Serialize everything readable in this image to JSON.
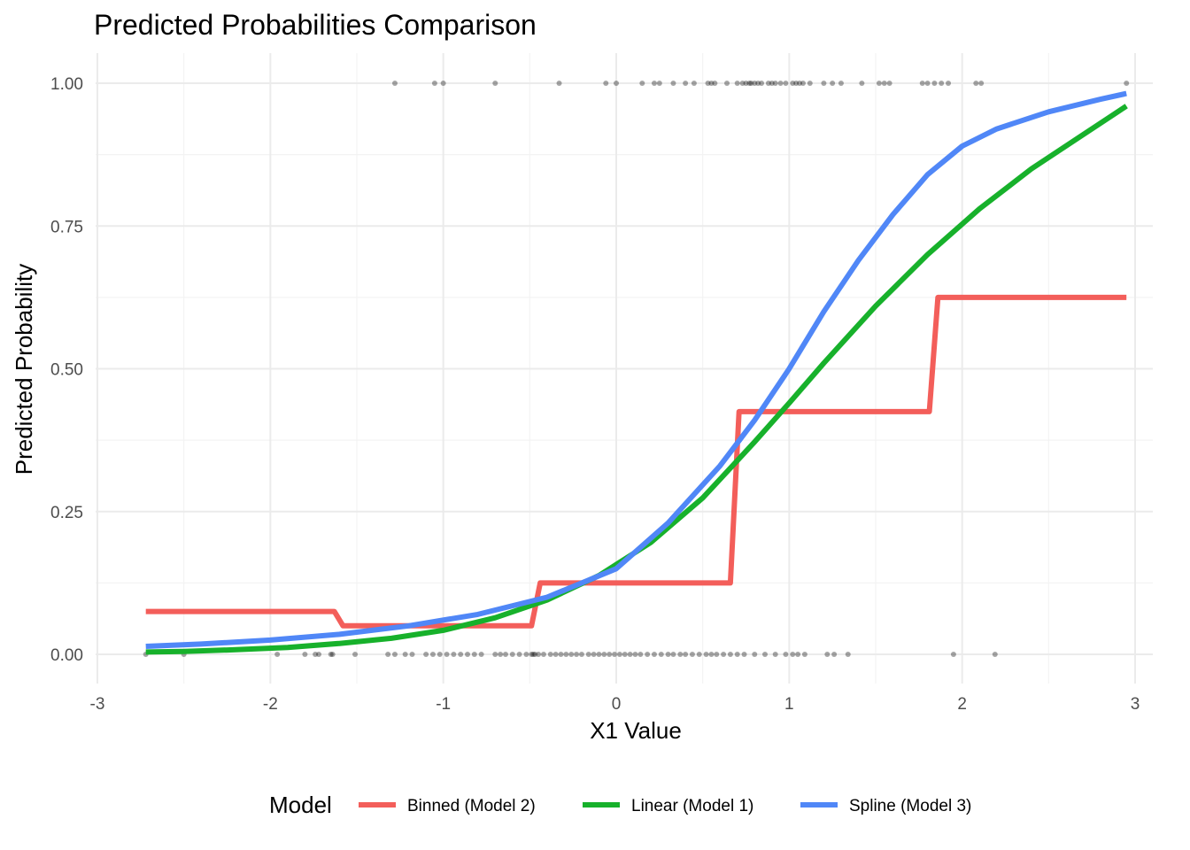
{
  "chart_data": {
    "type": "line",
    "title": "Predicted Probabilities Comparison",
    "xlabel": "X1 Value",
    "ylabel": "Predicted Probability",
    "xlim": [
      -3,
      3
    ],
    "ylim": [
      0,
      1
    ],
    "x_ticks": [
      -3,
      -2,
      -1,
      0,
      1,
      2,
      3
    ],
    "x_tick_labels": [
      "-3",
      "-2",
      "-1",
      "0",
      "1",
      "2",
      "3"
    ],
    "y_ticks": [
      0,
      0.25,
      0.5,
      0.75,
      1
    ],
    "y_tick_labels": [
      "0.00",
      "0.25",
      "0.50",
      "0.75",
      "1.00"
    ],
    "grid": true,
    "legend": {
      "title": "Model",
      "position": "bottom"
    },
    "series": [
      {
        "name": "Binned (Model 2)",
        "color": "#f35e5a",
        "x": [
          -2.72,
          -1.63,
          -1.58,
          -0.49,
          -0.44,
          0.66,
          0.71,
          1.81,
          1.86,
          2.95
        ],
        "y": [
          0.075,
          0.075,
          0.05,
          0.05,
          0.125,
          0.125,
          0.425,
          0.425,
          0.625,
          0.625
        ]
      },
      {
        "name": "Linear (Model 1)",
        "color": "#17b12b",
        "x": [
          -2.72,
          -2.5,
          -2.2,
          -1.9,
          -1.6,
          -1.3,
          -1.0,
          -0.7,
          -0.4,
          -0.1,
          0.2,
          0.5,
          0.8,
          1.0,
          1.2,
          1.5,
          1.8,
          2.1,
          2.4,
          2.7,
          2.95
        ],
        "y": [
          0.004,
          0.005,
          0.008,
          0.012,
          0.019,
          0.028,
          0.042,
          0.064,
          0.095,
          0.138,
          0.196,
          0.274,
          0.372,
          0.44,
          0.51,
          0.61,
          0.7,
          0.78,
          0.85,
          0.91,
          0.96
        ]
      },
      {
        "name": "Spline (Model 3)",
        "color": "#5087f7",
        "x": [
          -2.72,
          -2.4,
          -2.0,
          -1.6,
          -1.2,
          -0.8,
          -0.4,
          0.0,
          0.3,
          0.6,
          0.8,
          1.0,
          1.2,
          1.4,
          1.6,
          1.8,
          2.0,
          2.2,
          2.5,
          2.8,
          2.95
        ],
        "y": [
          0.014,
          0.018,
          0.025,
          0.035,
          0.05,
          0.07,
          0.1,
          0.15,
          0.23,
          0.33,
          0.41,
          0.5,
          0.6,
          0.69,
          0.77,
          0.84,
          0.89,
          0.92,
          0.95,
          0.972,
          0.982
        ]
      }
    ],
    "observations": {
      "type": "scatter",
      "color": "#000000",
      "y1_x": [
        -1.28,
        -1.05,
        -1.0,
        -0.7,
        -0.33,
        -0.06,
        0.0,
        0.15,
        0.22,
        0.25,
        0.33,
        0.4,
        0.45,
        0.53,
        0.55,
        0.57,
        0.64,
        0.7,
        0.73,
        0.75,
        0.77,
        0.78,
        0.8,
        0.82,
        0.84,
        0.88,
        0.9,
        0.92,
        0.95,
        0.98,
        1.02,
        1.04,
        1.06,
        1.08,
        1.12,
        1.2,
        1.25,
        1.3,
        1.42,
        1.52,
        1.55,
        1.58,
        1.77,
        1.8,
        1.84,
        1.88,
        1.92,
        2.08,
        2.11,
        2.95
      ],
      "y0_x": [
        -2.72,
        -2.5,
        -1.96,
        -1.8,
        -1.74,
        -1.72,
        -1.65,
        -1.64,
        -1.51,
        -1.32,
        -1.28,
        -1.22,
        -1.18,
        -1.1,
        -1.06,
        -1.02,
        -0.98,
        -0.94,
        -0.9,
        -0.86,
        -0.82,
        -0.78,
        -0.7,
        -0.67,
        -0.64,
        -0.6,
        -0.56,
        -0.52,
        -0.49,
        -0.48,
        -0.47,
        -0.45,
        -0.42,
        -0.38,
        -0.35,
        -0.32,
        -0.29,
        -0.26,
        -0.23,
        -0.2,
        -0.16,
        -0.13,
        -0.1,
        -0.07,
        -0.04,
        -0.01,
        0.02,
        0.05,
        0.08,
        0.11,
        0.14,
        0.18,
        0.22,
        0.26,
        0.3,
        0.33,
        0.37,
        0.4,
        0.44,
        0.48,
        0.52,
        0.55,
        0.58,
        0.62,
        0.66,
        0.7,
        0.74,
        0.8,
        0.86,
        0.92,
        0.98,
        1.02,
        1.05,
        1.09,
        1.22,
        1.26,
        1.34,
        1.95,
        2.19
      ]
    }
  }
}
